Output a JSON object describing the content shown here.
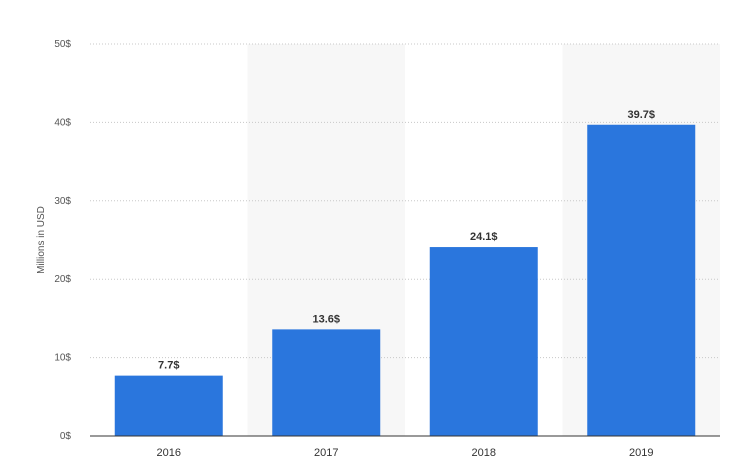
{
  "chart_data": {
    "type": "bar",
    "title": "",
    "xlabel": "",
    "ylabel": "Millions in USD",
    "categories": [
      "2016",
      "2017",
      "2018",
      "2019"
    ],
    "values": [
      7.7,
      13.6,
      24.1,
      39.7
    ],
    "data_labels": [
      "7.7$",
      "13.6$",
      "24.1$",
      "39.7$"
    ],
    "ylim": [
      0,
      50
    ],
    "yticks": [
      0,
      10,
      20,
      30,
      40,
      50
    ],
    "ytick_labels": [
      "0$",
      "10$",
      "20$",
      "30$",
      "40$",
      "50$"
    ],
    "grid": true,
    "legend": "none"
  },
  "colors": {
    "bar": "#2a76dd",
    "band": "#f7f7f7",
    "grid": "#c8c8c8",
    "axis": "#333333"
  }
}
